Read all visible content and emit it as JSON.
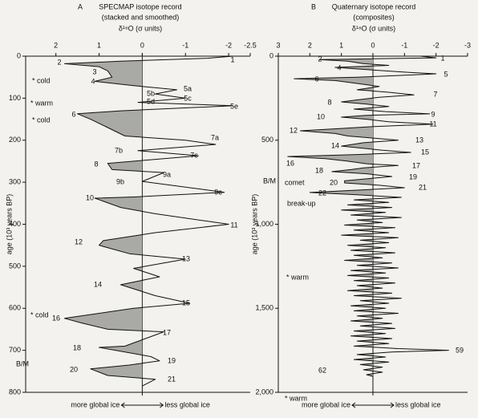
{
  "chart_data": [
    {
      "type": "line",
      "panel_label": "A",
      "title": "SPECMAP isotope record",
      "subtitle": "(stacked and smoothed)",
      "x_label": "δ¹⁸O (σ units)",
      "y_label": "age (10³ years BP)",
      "xlim": [
        2.7,
        -2.5
      ],
      "xticks": [
        2,
        1,
        0,
        -1,
        -2,
        -2.5
      ],
      "ylim": [
        0,
        800
      ],
      "yticks": [
        0,
        100,
        200,
        300,
        400,
        500,
        600,
        700,
        800
      ],
      "series": [
        {
          "color": "#111111",
          "ages": [
            0,
            5,
            12,
            18,
            25,
            35,
            50,
            60,
            70,
            80,
            90,
            100,
            110,
            118,
            130,
            137,
            150,
            170,
            190,
            200,
            210,
            225,
            237,
            255,
            270,
            277,
            298,
            324,
            335,
            338,
            360,
            375,
            400,
            420,
            439,
            450,
            470,
            483,
            505,
            525,
            544,
            570,
            588,
            600,
            624,
            635,
            650,
            656,
            690,
            693,
            715,
            725,
            735,
            744,
            760,
            769,
            785
          ],
          "values": [
            -2.1,
            -1.5,
            0.5,
            1.8,
            1.0,
            0.8,
            0.7,
            1.1,
            0.2,
            -0.8,
            -0.3,
            -1.0,
            0.1,
            -2.1,
            0.5,
            1.5,
            1.2,
            0.8,
            0.4,
            -1.0,
            -1.7,
            0.1,
            -1.3,
            0.8,
            0.7,
            -0.5,
            0,
            -1.9,
            0.2,
            1.1,
            0.5,
            -0.3,
            -2.0,
            -0.3,
            0.9,
            1.0,
            0.3,
            -1.0,
            0.2,
            -0.4,
            0.5,
            -0.3,
            -1.1,
            0.2,
            1.8,
            1.4,
            0.8,
            -0.5,
            0.4,
            1.0,
            -0.2,
            -0.4,
            0.3,
            1.2,
            0.8,
            -0.3,
            0
          ]
        }
      ],
      "stage_labels": [
        "1",
        "2",
        "3",
        "4",
        "5a",
        "5b",
        "5c",
        "5d",
        "5e",
        "6",
        "7a",
        "7b",
        "7c",
        "8",
        "9a",
        "9b",
        "9c",
        "10",
        "11",
        "12",
        "13",
        "14",
        "15",
        "16",
        "17",
        "18",
        "19",
        "20",
        "21"
      ],
      "notes": [
        "* cold",
        "* warm",
        "* cold",
        "* cold",
        "B/M"
      ],
      "left_arrow_label": "more global ice",
      "right_arrow_label": "less global ice"
    },
    {
      "type": "line",
      "panel_label": "B",
      "title": "Quaternary isotope record",
      "subtitle": "(composites)",
      "x_label": "δ¹⁸O (σ units)",
      "y_label": "age (10³ years BP)",
      "xlim": [
        3,
        -3
      ],
      "xticks": [
        3,
        2,
        1,
        0,
        -1,
        -2,
        -3
      ],
      "ylim": [
        0,
        2000
      ],
      "yticks": [
        0,
        500,
        {
          "value": 1000,
          "label": "1,000"
        },
        {
          "value": 1500,
          "label": "1,500"
        },
        {
          "value": 2000,
          "label": "2,000"
        }
      ],
      "series": [
        {
          "color": "#111111",
          "ages": [
            0,
            10,
            20,
            30,
            45,
            55,
            67,
            80,
            95,
            105,
            115,
            125,
            134,
            145,
            160,
            180,
            200,
            215,
            230,
            245,
            260,
            272,
            285,
            300,
            315,
            330,
            343,
            352,
            363,
            375,
            390,
            405,
            420,
            430,
            444,
            460,
            475,
            490,
            500,
            515,
            535,
            550,
            560,
            573,
            585,
            597,
            610,
            625,
            640,
            650,
            665,
            675,
            687,
            700,
            716,
            730,
            742,
            754,
            768,
            783,
            795,
            811,
            825,
            840,
            855,
            870,
            885,
            900,
            915,
            930,
            945,
            960,
            975,
            990,
            1005,
            1020,
            1035,
            1050,
            1065,
            1080,
            1095,
            1110,
            1125,
            1140,
            1155,
            1170,
            1185,
            1200,
            1215,
            1230,
            1245,
            1260,
            1275,
            1290,
            1305,
            1320,
            1335,
            1350,
            1365,
            1380,
            1395,
            1410,
            1425,
            1440,
            1455,
            1470,
            1485,
            1500,
            1515,
            1530,
            1545,
            1560,
            1575,
            1590,
            1605,
            1620,
            1635,
            1650,
            1665,
            1680,
            1695,
            1710,
            1725,
            1740,
            1750,
            1760,
            1775,
            1790,
            1805,
            1820,
            1835,
            1850,
            1866,
            1880,
            1895,
            1905
          ],
          "values": [
            -1.5,
            -2.0,
            1.7,
            0.8,
            0.3,
            -0.5,
            1.2,
            0.2,
            -1.0,
            -2.0,
            -0.8,
            0.5,
            2.5,
            1.2,
            0.6,
            -0.2,
            0.5,
            -0.5,
            -1.3,
            -0.2,
            0.5,
            1.0,
            0.2,
            -0.5,
            0.6,
            -0.4,
            -1.8,
            0.2,
            1.0,
            0.2,
            -0.5,
            -1.9,
            0.1,
            1.0,
            2.3,
            1.2,
            0.8,
            -0.2,
            -0.8,
            0.3,
            1.0,
            0.2,
            -0.3,
            -1.2,
            0.5,
            2.7,
            1.5,
            0.8,
            0.2,
            -0.8,
            0.3,
            0.7,
            1.3,
            0.2,
            -0.6,
            0.2,
            0.9,
            0.9,
            -0.2,
            -1.0,
            0.3,
            2.0,
            0.5,
            -0.9,
            0.6,
            -0.5,
            0.8,
            -0.6,
            1.0,
            -0.4,
            0.7,
            -0.9,
            0.5,
            -0.3,
            0.9,
            -0.7,
            0.6,
            -0.5,
            1.0,
            -0.8,
            0.4,
            -0.5,
            0.8,
            -0.4,
            0.7,
            -0.7,
            0.6,
            -0.3,
            0.9,
            -0.6,
            0.5,
            -0.8,
            0.7,
            -0.4,
            0.8,
            -0.5,
            0.6,
            -0.7,
            0.5,
            -0.3,
            0.8,
            -0.6,
            0.6,
            -0.9,
            0.4,
            -0.5,
            0.7,
            -0.4,
            0.6,
            -0.8,
            0.5,
            -0.3,
            0.7,
            -0.6,
            0.4,
            -0.7,
            0.6,
            -0.4,
            0.7,
            -0.6,
            0.5,
            -0.5,
            0.6,
            -0.8,
            -2.4,
            -0.6,
            0.5,
            -0.4,
            0.6,
            -0.5,
            0.4,
            -0.3,
            0.3,
            -0.3,
            0.2,
            0
          ]
        }
      ],
      "stage_labels": [
        "1",
        "2",
        "4",
        "5",
        "6",
        "7",
        "8",
        "9",
        "10",
        "11",
        "12",
        "13",
        "14",
        "15",
        "16",
        "17",
        "18",
        "19",
        "20",
        "21",
        "22",
        "59",
        "62"
      ],
      "notes": [
        "B/M",
        "comet",
        "break-up",
        "* warm",
        "* warm"
      ],
      "left_arrow_label": "more global ice",
      "right_arrow_label": "less global ice"
    }
  ]
}
